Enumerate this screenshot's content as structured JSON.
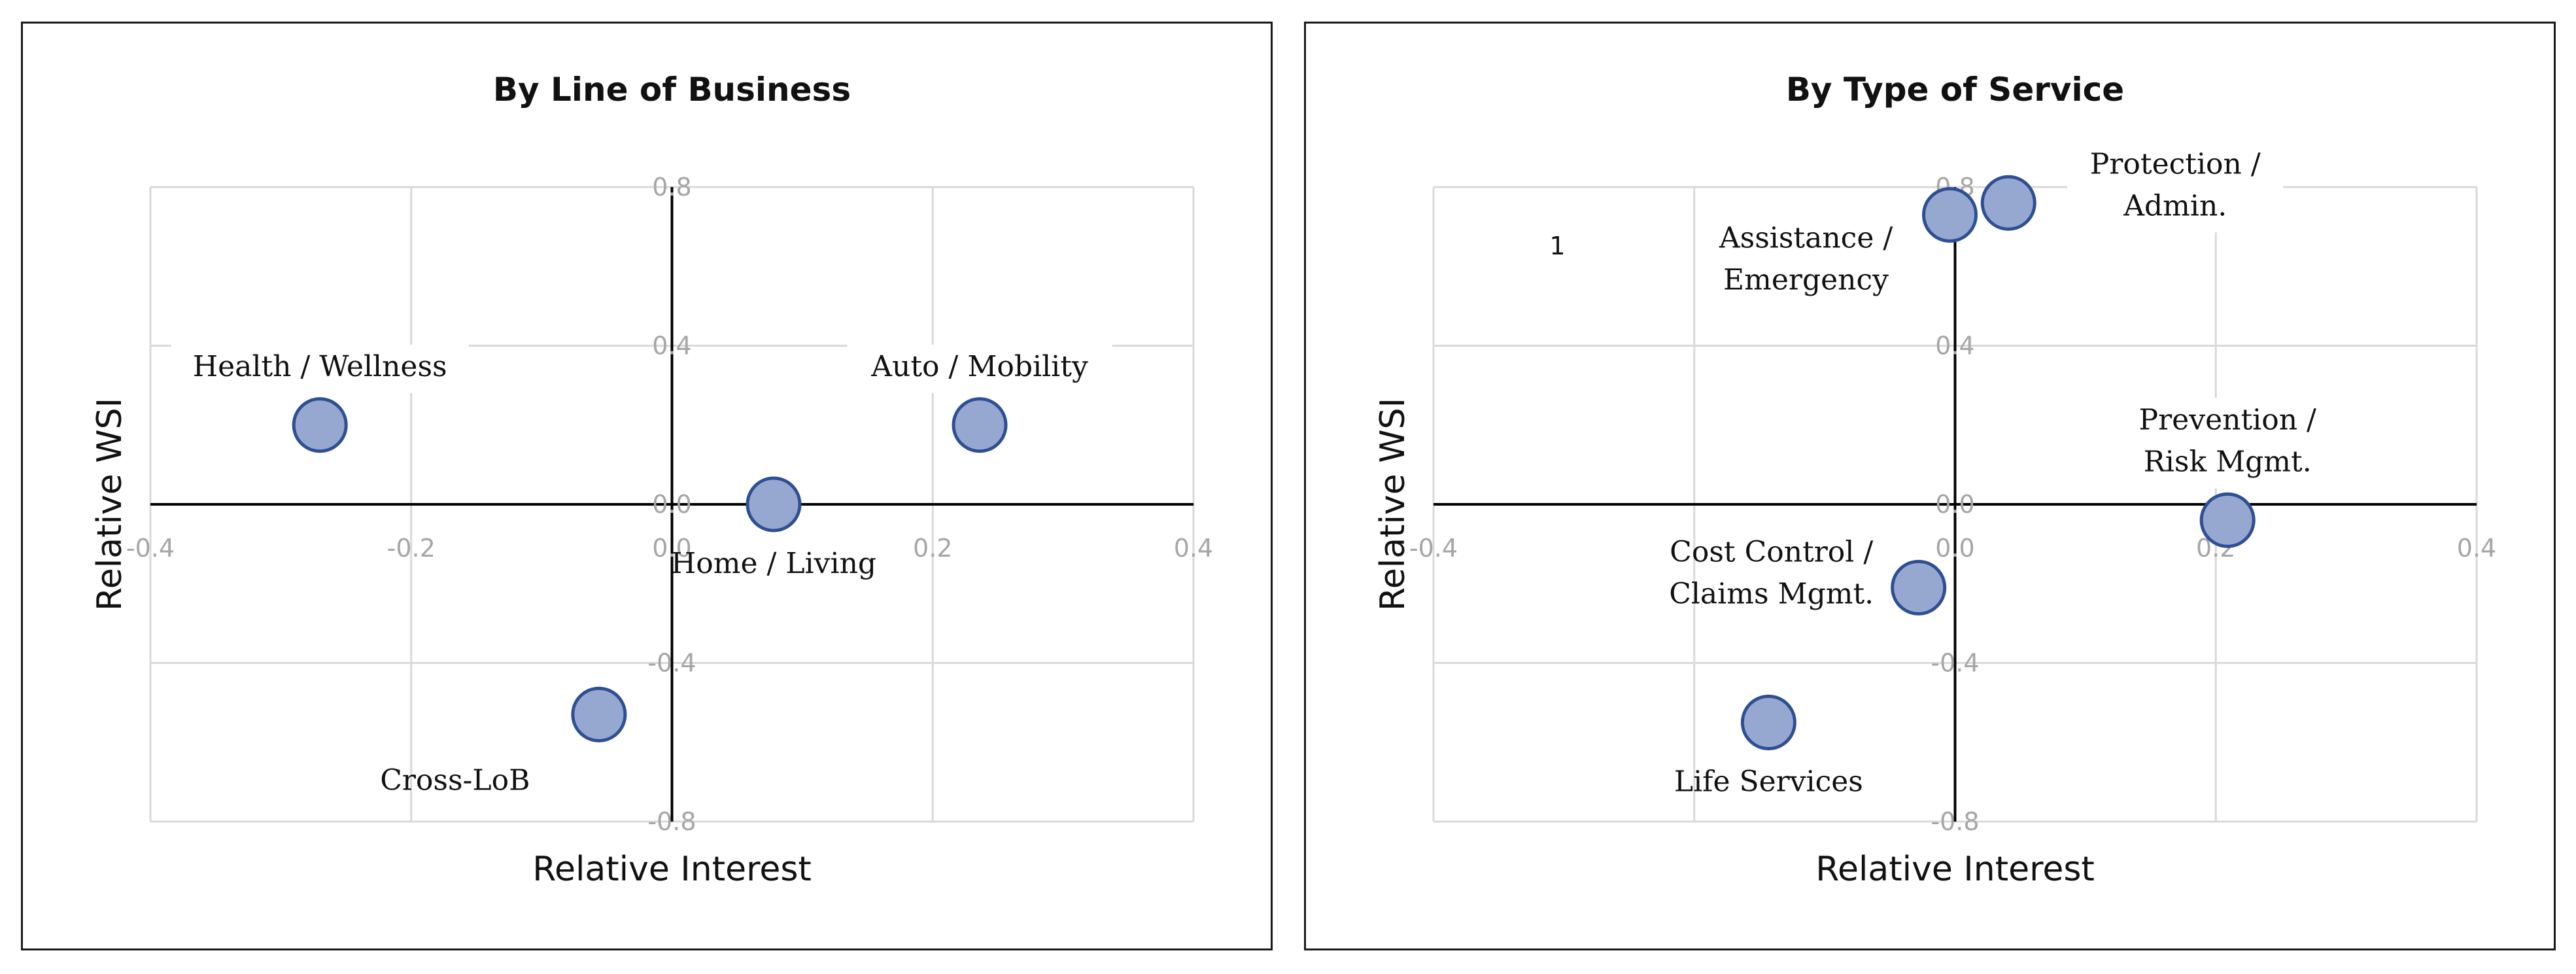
{
  "chart_data": [
    {
      "type": "scatter",
      "title": "By Line of Business",
      "xlabel": "Relative Interest",
      "ylabel": "Relative WSI",
      "xlim": [
        -0.4,
        0.4
      ],
      "ylim": [
        -0.8,
        0.8
      ],
      "x_ticks": [
        -0.4,
        -0.2,
        0.0,
        0.2,
        0.4
      ],
      "y_ticks": [
        -0.8,
        -0.4,
        0.0,
        0.4,
        0.8
      ],
      "x_tick_labels": [
        "-0.4",
        "-0.2",
        "0.0",
        "0.2",
        "0.4"
      ],
      "y_tick_labels": [
        "-0.8",
        "-0.4",
        "0.0",
        "0.4",
        "0.8"
      ],
      "grid": true,
      "marker_color": "#96a8cf",
      "marker_edge": "#2e4f94",
      "points": [
        {
          "label": [
            "Health / Wellness"
          ],
          "x": -0.27,
          "y": 0.2,
          "label_pos": "above"
        },
        {
          "label": [
            "Auto / Mobility"
          ],
          "x": 0.236,
          "y": 0.2,
          "label_pos": "above"
        },
        {
          "label": [
            "Home / Living"
          ],
          "x": 0.078,
          "y": 0.0,
          "label_pos": "below"
        },
        {
          "label": [
            "Cross-LoB"
          ],
          "x": -0.056,
          "y": -0.53,
          "label_pos": "below-left"
        }
      ],
      "annotations": []
    },
    {
      "type": "scatter",
      "title": "By Type of Service",
      "xlabel": "Relative Interest",
      "ylabel": "Relative WSI",
      "xlim": [
        -0.4,
        0.4
      ],
      "ylim": [
        -0.8,
        0.8
      ],
      "x_ticks": [
        -0.4,
        -0.2,
        0.0,
        0.2,
        0.4
      ],
      "y_ticks": [
        -0.8,
        -0.4,
        0.0,
        0.4,
        0.8
      ],
      "x_tick_labels": [
        "-0.4",
        "",
        "0.0",
        "0.2",
        "0.4"
      ],
      "y_tick_labels": [
        "-0.8",
        "-0.4",
        "0.0",
        "0.4",
        "0.8"
      ],
      "grid": true,
      "marker_color": "#96a8cf",
      "marker_edge": "#2e4f94",
      "points": [
        {
          "label": [
            "Assistance /",
            "Emergency"
          ],
          "x": -0.004,
          "y": 0.73,
          "label_pos": "below-left"
        },
        {
          "label": [
            "Protection /",
            "Admin."
          ],
          "x": 0.041,
          "y": 0.76,
          "label_pos": "right"
        },
        {
          "label": [
            "Prevention /",
            "Risk Mgmt."
          ],
          "x": 0.209,
          "y": -0.04,
          "label_pos": "above"
        },
        {
          "label": [
            "Cost Control /",
            "Claims Mgmt."
          ],
          "x": -0.028,
          "y": -0.21,
          "label_pos": "left"
        },
        {
          "label": [
            "Life Services"
          ],
          "x": -0.143,
          "y": -0.55,
          "label_pos": "below"
        }
      ],
      "annotations": [
        {
          "text": "1",
          "x": -0.305,
          "y": 0.63
        }
      ]
    }
  ]
}
